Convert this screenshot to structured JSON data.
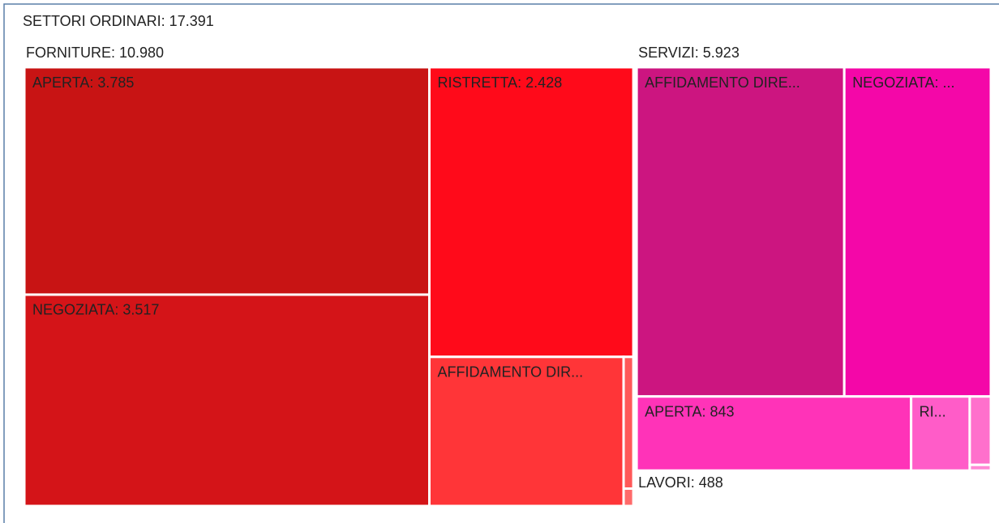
{
  "chart_data": {
    "type": "treemap",
    "label": "SETTORI ORDINARI: 17.391",
    "value": 17391,
    "children": [
      {
        "label": "FORNITURE: 10.980",
        "value": 10980,
        "children": [
          {
            "label": "APERTA: 3.785",
            "value": 3785,
            "color": "#c81414"
          },
          {
            "label": "NEGOZIATA: 3.517",
            "value": 3517,
            "color": "#d41418"
          },
          {
            "label": "RISTRETTA: 2.428",
            "value": 2428,
            "color": "#ff0a1a"
          },
          {
            "label": "AFFIDAMENTO DIR...",
            "value": 1190,
            "color": "#ff3538"
          },
          {
            "value": 53,
            "color": "#ff5858"
          },
          {
            "value": 7,
            "color": "#ff6a6a"
          }
        ]
      },
      {
        "label": "SERVIZI: 5.923",
        "value": 5923,
        "children": [
          {
            "label": "AFFIDAMENTO DIRE...",
            "value": 2834,
            "color": "#cc1580"
          },
          {
            "label": "NEGOZIATA: ...",
            "value": 2001,
            "color": "#f407a8"
          },
          {
            "label": "APERTA: 843",
            "value": 843,
            "color": "#ff33b8"
          },
          {
            "label": "RI...",
            "value": 180,
            "color": "#ff5cc8"
          },
          {
            "value": 60,
            "color": "#ff70cc"
          },
          {
            "value": 5,
            "color": "#ff88d4"
          }
        ]
      },
      {
        "label": "LAVORI: 488",
        "value": 488,
        "children": []
      }
    ]
  }
}
